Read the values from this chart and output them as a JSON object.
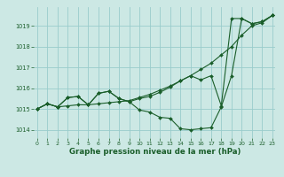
{
  "title": "Graphe pression niveau de la mer (hPa)",
  "background_color": "#cce8e4",
  "grid_color": "#99cccc",
  "line_color": "#1a5e2a",
  "x_ticks": [
    0,
    1,
    2,
    3,
    4,
    5,
    6,
    7,
    8,
    9,
    10,
    11,
    12,
    13,
    14,
    15,
    16,
    17,
    18,
    19,
    20,
    21,
    22,
    23
  ],
  "y_ticks": [
    1014,
    1015,
    1016,
    1017,
    1018,
    1019
  ],
  "ylim": [
    1013.6,
    1019.9
  ],
  "xlim": [
    -0.3,
    23.3
  ],
  "lineA": [
    1015.0,
    1015.25,
    1015.1,
    1015.15,
    1015.2,
    1015.2,
    1015.25,
    1015.3,
    1015.35,
    1015.4,
    1015.55,
    1015.7,
    1015.9,
    1016.1,
    1016.35,
    1016.6,
    1016.9,
    1017.2,
    1017.6,
    1018.0,
    1018.55,
    1019.0,
    1019.15,
    1019.5
  ],
  "lineB": [
    1015.0,
    1015.25,
    1015.1,
    1015.55,
    1015.6,
    1015.2,
    1015.75,
    1015.85,
    1015.5,
    1015.35,
    1014.95,
    1014.85,
    1014.6,
    1014.55,
    1014.05,
    1014.0,
    1014.05,
    1014.1,
    1015.1,
    1016.6,
    1019.35,
    1019.1,
    1019.2,
    1019.5
  ],
  "lineC": [
    1015.0,
    1015.25,
    1015.1,
    1015.55,
    1015.6,
    1015.2,
    1015.75,
    1015.85,
    1015.5,
    1015.35,
    1015.5,
    1015.6,
    1015.8,
    1016.05,
    1016.35,
    1016.6,
    1016.4,
    1016.6,
    1015.15,
    1019.35,
    1019.35,
    1019.1,
    1019.2,
    1019.5
  ]
}
